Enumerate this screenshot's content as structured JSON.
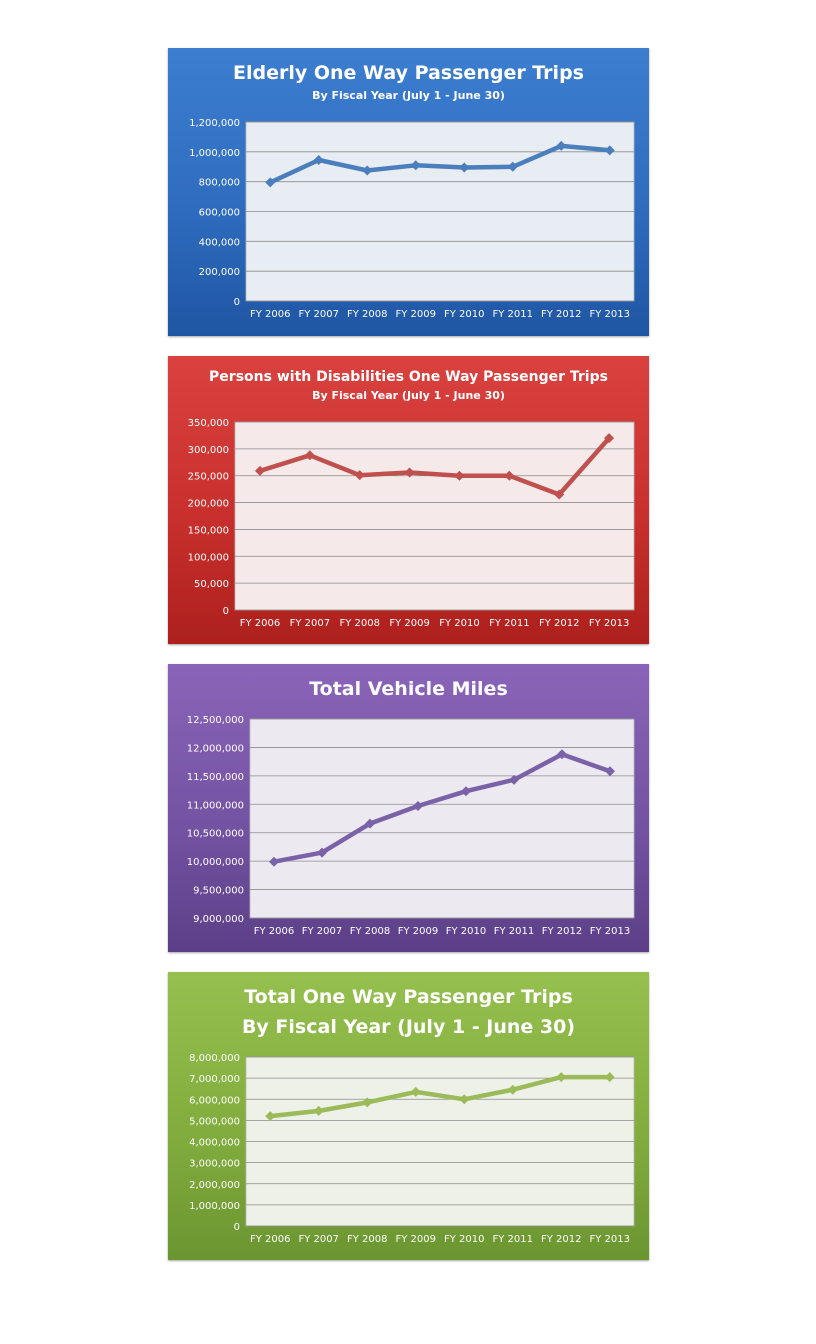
{
  "chart_data": [
    {
      "type": "line",
      "title": "Elderly One Way Passenger Trips",
      "subtitle": "By Fiscal Year (July 1 - June 30)",
      "categories": [
        "FY 2006",
        "FY 2007",
        "FY 2008",
        "FY 2009",
        "FY 2010",
        "FY 2011",
        "FY 2012",
        "FY 2013"
      ],
      "values": [
        795000,
        945000,
        875000,
        910000,
        895000,
        900000,
        1040000,
        1010000
      ],
      "ylim": [
        0,
        1200000
      ],
      "yticks": [
        0,
        200000,
        400000,
        600000,
        800000,
        1000000,
        1200000
      ],
      "ytick_labels": [
        "0",
        "200,000",
        "400,000",
        "600,000",
        "800,000",
        "1,000,000",
        "1,200,000"
      ],
      "grid": true,
      "colors": {
        "line": "#4a7ebd",
        "plot_bg": "#e8ecf3",
        "panel": "#2f6cbf"
      }
    },
    {
      "type": "line",
      "title": "Persons with Disabilities One Way Passenger Trips",
      "subtitle": "By Fiscal Year (July 1 - June 30)",
      "categories": [
        "FY 2006",
        "FY 2007",
        "FY 2008",
        "FY 2009",
        "FY 2010",
        "FY 2011",
        "FY 2012",
        "FY 2013"
      ],
      "values": [
        259000,
        288000,
        251000,
        256000,
        250000,
        250000,
        215000,
        320000
      ],
      "ylim": [
        0,
        350000
      ],
      "yticks": [
        0,
        50000,
        100000,
        150000,
        200000,
        250000,
        300000,
        350000
      ],
      "ytick_labels": [
        "0",
        "50,000",
        "100,000",
        "150,000",
        "200,000",
        "250,000",
        "300,000",
        "350,000"
      ],
      "grid": true,
      "colors": {
        "line": "#c0504d",
        "plot_bg": "#f5e9e9",
        "panel": "#c8302d"
      }
    },
    {
      "type": "line",
      "title": "Total Vehicle Miles",
      "subtitle": "",
      "categories": [
        "FY 2006",
        "FY 2007",
        "FY 2008",
        "FY 2009",
        "FY 2010",
        "FY 2011",
        "FY 2012",
        "FY 2013"
      ],
      "values": [
        9990000,
        10150000,
        10660000,
        10970000,
        11230000,
        11430000,
        11880000,
        11580000
      ],
      "ylim": [
        9000000,
        12500000
      ],
      "yticks": [
        9000000,
        9500000,
        10000000,
        10500000,
        11000000,
        11500000,
        12000000,
        12500000
      ],
      "ytick_labels": [
        "9,000,000",
        "9,500,000",
        "10,000,000",
        "10,500,000",
        "11,000,000",
        "11,500,000",
        "12,000,000",
        "12,500,000"
      ],
      "grid": true,
      "colors": {
        "line": "#7b62a8",
        "plot_bg": "#eceaf0",
        "panel": "#7453a3"
      }
    },
    {
      "type": "line",
      "title": "Total One Way Passenger Trips",
      "subtitle": "By Fiscal Year (July 1 - June 30)",
      "categories": [
        "FY 2006",
        "FY 2007",
        "FY 2008",
        "FY 2009",
        "FY 2010",
        "FY 2011",
        "FY 2012",
        "FY 2013"
      ],
      "values": [
        5200000,
        5450000,
        5850000,
        6350000,
        6000000,
        6450000,
        7050000,
        7050000
      ],
      "ylim": [
        0,
        8000000
      ],
      "yticks": [
        0,
        1000000,
        2000000,
        3000000,
        4000000,
        5000000,
        6000000,
        7000000,
        8000000
      ],
      "ytick_labels": [
        "0",
        "1,000,000",
        "2,000,000",
        "3,000,000",
        "4,000,000",
        "5,000,000",
        "6,000,000",
        "7,000,000",
        "8,000,000"
      ],
      "grid": true,
      "colors": {
        "line": "#9bbb59",
        "plot_bg": "#eef1e8",
        "panel": "#82ad3e"
      }
    }
  ]
}
